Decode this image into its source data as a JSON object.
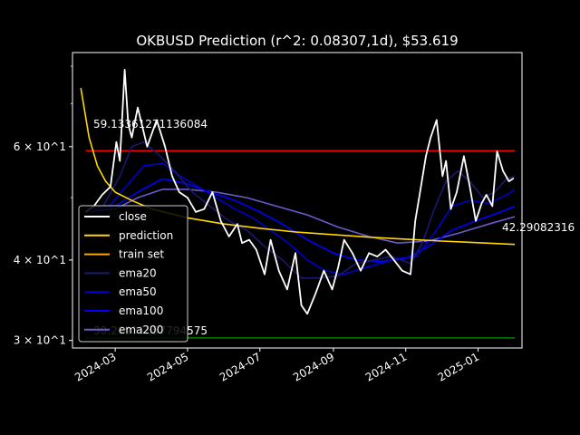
{
  "chart_data": {
    "type": "line",
    "title": "OKBUSD Prediction (r^2: 0.08307,1d), $53.619",
    "xlabel": "",
    "ylabel": "",
    "yscale": "log",
    "ylim": [
      29.2,
      84.0
    ],
    "x_ticks": [
      "2024-03",
      "2024-05",
      "2024-07",
      "2024-09",
      "2024-11",
      "2025-01"
    ],
    "y_ticks": [
      "3 × 10^1",
      "4 × 10^1",
      "6 × 10^1"
    ],
    "grid": false,
    "legend_position": "center-left",
    "annotations": {
      "upper_value": "59.13361271136084",
      "lower_value": "30.26931657794575",
      "last_prediction": "42.29082316"
    },
    "hlines": [
      {
        "name": "upper",
        "value": 59.13,
        "color": "#ff0000"
      },
      {
        "name": "lower",
        "value": 30.27,
        "color": "#008000"
      }
    ],
    "legend": [
      "close",
      "prediction",
      "train set",
      "ema20",
      "ema50",
      "ema100",
      "ema200"
    ],
    "series": [
      {
        "name": "close",
        "color": "#ffffff",
        "x": [
          "2024-02-05",
          "2024-02-12",
          "2024-02-19",
          "2024-02-26",
          "2024-03-02",
          "2024-03-05",
          "2024-03-09",
          "2024-03-12",
          "2024-03-15",
          "2024-03-20",
          "2024-03-28",
          "2024-04-05",
          "2024-04-12",
          "2024-04-18",
          "2024-04-24",
          "2024-05-01",
          "2024-05-08",
          "2024-05-15",
          "2024-05-22",
          "2024-05-29",
          "2024-06-05",
          "2024-06-12",
          "2024-06-16",
          "2024-06-22",
          "2024-06-28",
          "2024-07-05",
          "2024-07-10",
          "2024-07-17",
          "2024-07-24",
          "2024-07-31",
          "2024-08-05",
          "2024-08-10",
          "2024-08-17",
          "2024-08-24",
          "2024-08-31",
          "2024-09-05",
          "2024-09-10",
          "2024-09-17",
          "2024-09-24",
          "2024-10-01",
          "2024-10-08",
          "2024-10-15",
          "2024-10-22",
          "2024-10-29",
          "2024-11-05",
          "2024-11-09",
          "2024-11-13",
          "2024-11-18",
          "2024-11-22",
          "2024-11-27",
          "2024-12-02",
          "2024-12-05",
          "2024-12-09",
          "2024-12-14",
          "2024-12-20",
          "2024-12-25",
          "2024-12-30",
          "2025-01-04",
          "2025-01-08",
          "2025-01-13",
          "2025-01-17",
          "2025-01-22",
          "2025-01-27",
          "2025-01-31"
        ],
        "y": [
          47.5,
          48.5,
          50.5,
          52,
          61,
          57,
          79,
          65,
          62,
          69,
          60,
          66,
          60,
          54,
          51,
          50,
          47.5,
          48,
          51,
          46,
          43.5,
          45.5,
          42.5,
          43,
          41.5,
          38,
          43,
          38.5,
          36,
          41,
          34,
          33,
          35.5,
          38.5,
          36,
          39,
          43,
          41,
          38.5,
          41,
          40.5,
          41.5,
          40,
          38.5,
          38,
          46,
          51,
          58,
          62,
          66,
          54,
          57,
          48,
          51,
          58,
          52,
          46,
          49,
          50.5,
          48.5,
          59,
          55,
          53,
          53.6
        ]
      },
      {
        "name": "prediction",
        "color": "#ffd700",
        "x": [
          "2024-02-01",
          "2024-02-08",
          "2024-02-15",
          "2024-02-22",
          "2024-03-01",
          "2024-03-15",
          "2024-04-01",
          "2024-05-01",
          "2024-06-01",
          "2024-07-01",
          "2024-08-01",
          "2024-09-01",
          "2024-10-01",
          "2024-11-01",
          "2024-12-01",
          "2025-01-01",
          "2025-02-01"
        ],
        "y": [
          74,
          62,
          56,
          53,
          51,
          49.5,
          48,
          46.5,
          45.5,
          44.8,
          44.2,
          43.8,
          43.4,
          43.1,
          42.8,
          42.55,
          42.29
        ]
      },
      {
        "name": "ema20",
        "color": "#191970",
        "x": [
          "2024-02-05",
          "2024-02-20",
          "2024-03-05",
          "2024-03-15",
          "2024-03-25",
          "2024-04-08",
          "2024-04-20",
          "2024-05-05",
          "2024-05-20",
          "2024-06-05",
          "2024-06-20",
          "2024-07-05",
          "2024-07-20",
          "2024-08-05",
          "2024-08-20",
          "2024-09-05",
          "2024-09-20",
          "2024-10-05",
          "2024-10-20",
          "2024-11-05",
          "2024-11-15",
          "2024-11-25",
          "2024-12-05",
          "2024-12-15",
          "2024-12-25",
          "2025-01-05",
          "2025-01-15",
          "2025-01-25",
          "2025-02-01"
        ],
        "y": [
          47.5,
          48.5,
          54,
          60,
          61,
          58,
          55,
          51,
          48.5,
          46,
          44.5,
          42,
          40,
          37.5,
          37.5,
          37.8,
          39.5,
          40,
          40.5,
          39.5,
          42.5,
          48,
          53,
          55,
          53,
          50,
          51,
          53.5,
          54
        ]
      },
      {
        "name": "ema50",
        "color": "#0000cd",
        "x": [
          "2024-02-05",
          "2024-02-25",
          "2024-03-10",
          "2024-03-25",
          "2024-04-10",
          "2024-04-25",
          "2024-05-10",
          "2024-05-25",
          "2024-06-10",
          "2024-06-25",
          "2024-07-10",
          "2024-07-25",
          "2024-08-10",
          "2024-08-25",
          "2024-09-10",
          "2024-09-25",
          "2024-10-10",
          "2024-10-25",
          "2024-11-10",
          "2024-11-25",
          "2024-12-10",
          "2024-12-25",
          "2025-01-10",
          "2025-01-25",
          "2025-02-01"
        ],
        "y": [
          47.5,
          48.5,
          52,
          56,
          56.5,
          54,
          52,
          50,
          48,
          46.5,
          44.5,
          42.5,
          40,
          38.5,
          38,
          38.8,
          39.5,
          40.2,
          40.5,
          44,
          48.5,
          49.5,
          49,
          50.5,
          51.5
        ]
      },
      {
        "name": "ema100",
        "color": "#0000ff",
        "x": [
          "2024-02-05",
          "2024-03-01",
          "2024-03-20",
          "2024-04-10",
          "2024-05-01",
          "2024-05-20",
          "2024-06-10",
          "2024-07-01",
          "2024-07-20",
          "2024-08-10",
          "2024-09-01",
          "2024-09-20",
          "2024-10-10",
          "2024-11-01",
          "2024-11-20",
          "2024-12-10",
          "2024-12-30",
          "2025-01-20",
          "2025-02-01"
        ],
        "y": [
          47.5,
          48.5,
          51,
          53.5,
          52.5,
          51,
          49.5,
          47.5,
          45.5,
          43,
          41,
          40,
          39.8,
          40.2,
          42,
          44.5,
          46,
          47.5,
          48.5
        ]
      },
      {
        "name": "ema200",
        "color": "#6a5acd",
        "x": [
          "2024-02-05",
          "2024-03-01",
          "2024-03-20",
          "2024-04-10",
          "2024-05-01",
          "2024-05-25",
          "2024-06-20",
          "2024-07-15",
          "2024-08-10",
          "2024-09-05",
          "2024-10-01",
          "2024-10-25",
          "2024-11-20",
          "2024-12-15",
          "2025-01-10",
          "2025-02-01"
        ],
        "y": [
          47.5,
          48,
          50,
          51.5,
          51.5,
          51,
          50,
          48.5,
          47,
          45,
          43.5,
          42.5,
          42.8,
          44,
          45.5,
          46.7
        ]
      }
    ]
  }
}
